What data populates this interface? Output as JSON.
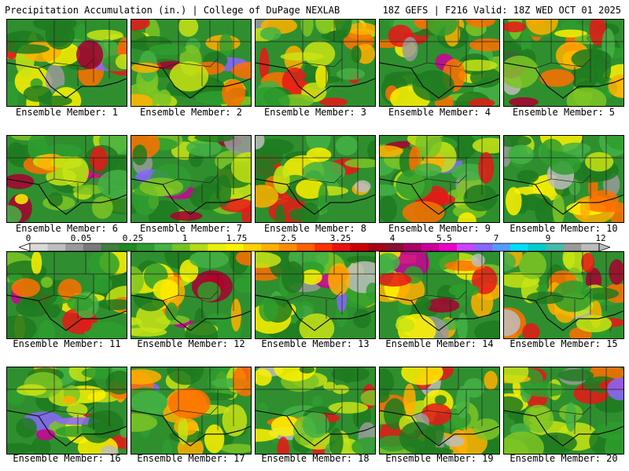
{
  "header": {
    "left": "Precipitation Accumulation (in.) | College of DuPage NEXLAB",
    "right": "18Z GEFS | F216 Valid: 18Z WED OCT 01 2025"
  },
  "members": [
    "Ensemble Member: 1",
    "Ensemble Member: 2",
    "Ensemble Member: 3",
    "Ensemble Member: 4",
    "Ensemble Member: 5",
    "Ensemble Member: 6",
    "Ensemble Member: 7",
    "Ensemble Member: 8",
    "Ensemble Member: 9",
    "Ensemble Member: 10",
    "Ensemble Member: 11",
    "Ensemble Member: 12",
    "Ensemble Member: 13",
    "Ensemble Member: 14",
    "Ensemble Member: 15",
    "Ensemble Member: 16",
    "Ensemble Member: 17",
    "Ensemble Member: 18",
    "Ensemble Member: 19",
    "Ensemble Member: 20"
  ],
  "colorbar": {
    "labels": [
      "0",
      "0.05",
      "0.25",
      "1",
      "1.75",
      "2.5",
      "3.25",
      "4",
      "5.5",
      "7",
      "9",
      "12"
    ],
    "colors": [
      "#d9d9d9",
      "#bfbfbf",
      "#9a9a9a",
      "#7a7a7a",
      "#3e7e3e",
      "#1f8a1f",
      "#2e9e2e",
      "#44b244",
      "#74c424",
      "#b4dc14",
      "#e8f00a",
      "#fff200",
      "#ffd200",
      "#ffb000",
      "#ff8c00",
      "#ff6000",
      "#ff3000",
      "#ee1010",
      "#cc0000",
      "#a80018",
      "#881030",
      "#aa0066",
      "#cc0099",
      "#ee00cc",
      "#cc44ff",
      "#8866ff",
      "#5599ff",
      "#00ddff",
      "#00cccc",
      "#44bbaa",
      "#999999",
      "#bbbbbb"
    ]
  }
}
